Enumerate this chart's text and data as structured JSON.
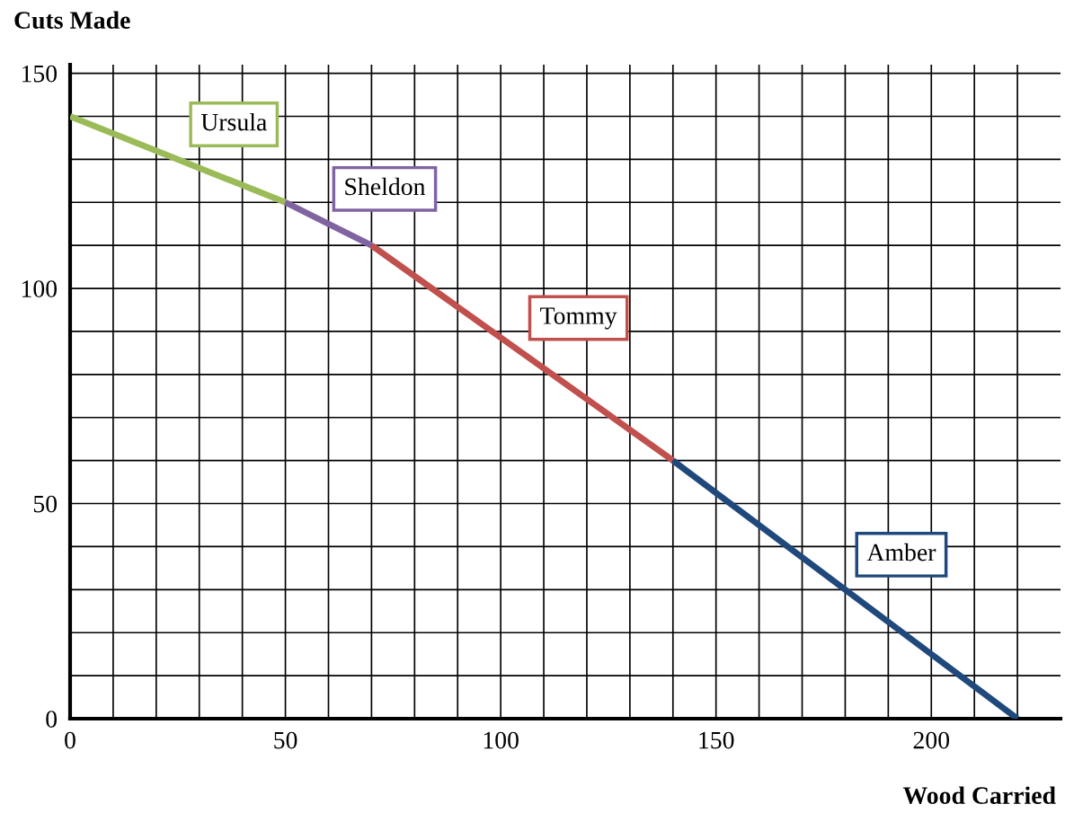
{
  "chart_data": {
    "type": "line",
    "xlabel": "Wood Carried",
    "ylabel": "Cuts Made",
    "series": [
      {
        "name": "Ursula",
        "color": "#9bbb59",
        "x": [
          0,
          50
        ],
        "values": [
          140,
          120
        ]
      },
      {
        "name": "Sheldon",
        "color": "#8064a2",
        "x": [
          50,
          70
        ],
        "values": [
          120,
          110
        ]
      },
      {
        "name": "Tommy",
        "color": "#c0504d",
        "x": [
          70,
          140
        ],
        "values": [
          110,
          60
        ]
      },
      {
        "name": "Amber",
        "color": "#1f497d",
        "x": [
          140,
          220
        ],
        "values": [
          60,
          0
        ]
      }
    ],
    "xlim": [
      0,
      230
    ],
    "ylim": [
      0,
      152
    ],
    "xticks": [
      0,
      {
        "value": 10,
        "label": null
      },
      {
        "value": 20,
        "label": null
      },
      {
        "value": 30,
        "label": null
      },
      {
        "value": 40,
        "label": null
      },
      50,
      {
        "value": 60,
        "label": null
      },
      {
        "value": 70,
        "label": null
      },
      {
        "value": 80,
        "label": null
      },
      {
        "value": 90,
        "label": null
      },
      100,
      {
        "value": 110,
        "label": null
      },
      {
        "value": 120,
        "label": null
      },
      {
        "value": 130,
        "label": null
      },
      {
        "value": 140,
        "label": null
      },
      150,
      {
        "value": 160,
        "label": null
      },
      {
        "value": 170,
        "label": null
      },
      {
        "value": 180,
        "label": null
      },
      {
        "value": 190,
        "label": null
      },
      200,
      {
        "value": 210,
        "label": null
      },
      {
        "value": 220,
        "label": null
      }
    ],
    "yticks": [
      0,
      {
        "value": 10,
        "label": null
      },
      {
        "value": 20,
        "label": null
      },
      {
        "value": 30,
        "label": null
      },
      {
        "value": 40,
        "label": null
      },
      50,
      {
        "value": 60,
        "label": null
      },
      {
        "value": 70,
        "label": null
      },
      {
        "value": 80,
        "label": null
      },
      {
        "value": 90,
        "label": null
      },
      100,
      {
        "value": 110,
        "label": null
      },
      {
        "value": 120,
        "label": null
      },
      {
        "value": 130,
        "label": null
      },
      {
        "value": 140,
        "label": null
      },
      150
    ],
    "grid": true,
    "marker": "none",
    "line_style": "solid"
  }
}
